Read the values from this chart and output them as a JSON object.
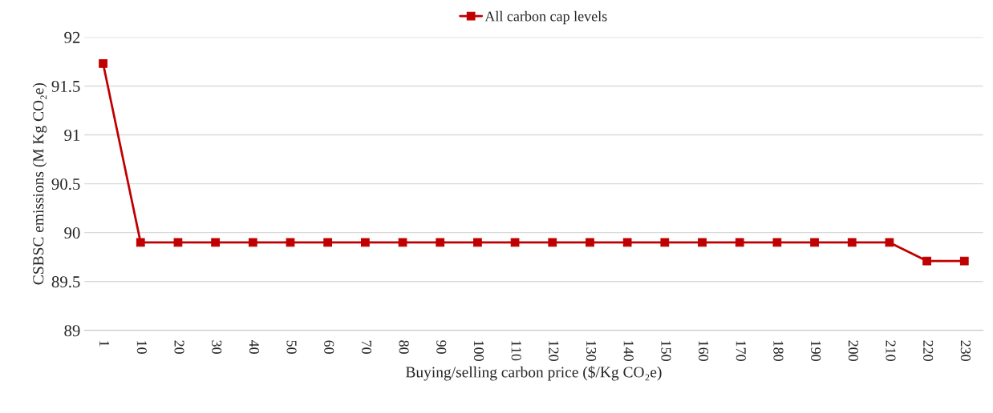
{
  "chart_data": {
    "type": "line",
    "xlabel": "Buying/selling carbon price ($/Kg CO₂e)",
    "ylabel": "CSBSC emissions (M Kg CO₂e)",
    "categories": [
      "1",
      "10",
      "20",
      "30",
      "40",
      "50",
      "60",
      "70",
      "80",
      "90",
      "100",
      "110",
      "120",
      "130",
      "140",
      "150",
      "160",
      "170",
      "180",
      "190",
      "200",
      "210",
      "220",
      "230"
    ],
    "series": [
      {
        "name": "All carbon cap levels",
        "color": "#c00000",
        "values": [
          91.73,
          89.9,
          89.9,
          89.9,
          89.9,
          89.9,
          89.9,
          89.9,
          89.9,
          89.9,
          89.9,
          89.9,
          89.9,
          89.9,
          89.9,
          89.9,
          89.9,
          89.9,
          89.9,
          89.9,
          89.9,
          89.9,
          89.71,
          89.71
        ]
      }
    ],
    "ylim": [
      89,
      92
    ],
    "yticks": [
      89,
      89.5,
      90,
      90.5,
      91,
      91.5,
      92
    ],
    "grid": "y",
    "legend": "top",
    "marker": "square",
    "line_style": "solid"
  }
}
